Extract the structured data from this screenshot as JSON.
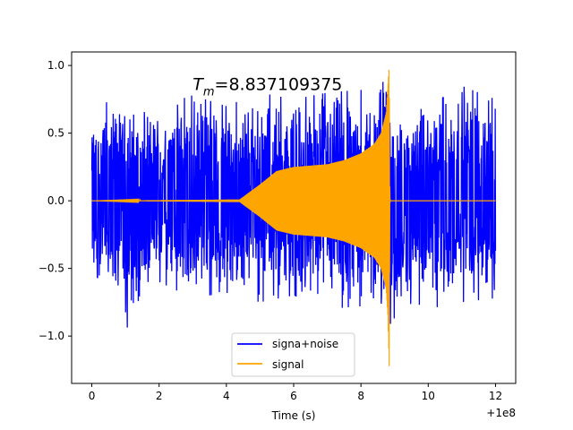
{
  "chart_data": {
    "type": "line",
    "title": "",
    "annotation": {
      "prefix": "T",
      "subscript": "m",
      "value_text": "=8.837109375",
      "x": 3.0,
      "y": 0.82
    },
    "xlabel": "Time (s)",
    "ylabel": "",
    "x_offset_label": "+1e8",
    "xlim": [
      -0.6,
      12.6
    ],
    "ylim": [
      -1.35,
      1.1
    ],
    "x_ticks": [
      0,
      2,
      4,
      6,
      8,
      10,
      12
    ],
    "x_tick_labels": [
      "0",
      "2",
      "4",
      "6",
      "8",
      "10",
      "12"
    ],
    "y_ticks": [
      -1.0,
      -0.5,
      0.0,
      0.5,
      1.0
    ],
    "y_tick_labels": [
      "−1.0",
      "−0.5",
      "0.0",
      "0.5",
      "1.0"
    ],
    "grid": false,
    "legend_position": "lower center",
    "series": [
      {
        "name": "signa+noise",
        "color": "#0000ff",
        "x_range": [
          0,
          12
        ],
        "envelope_x": [
          0,
          0.5,
          1.1,
          1.5,
          2.0,
          3.0,
          4.0,
          5.0,
          6.0,
          7.0,
          8.0,
          8.5,
          8.8,
          9.0,
          10.0,
          11.0,
          12.0
        ],
        "envelope_max": [
          0.58,
          0.75,
          0.72,
          0.65,
          0.7,
          0.78,
          0.7,
          0.8,
          0.75,
          0.8,
          0.82,
          0.75,
          1.0,
          0.6,
          0.7,
          0.85,
          0.75
        ],
        "envelope_min": [
          -0.55,
          -0.6,
          -1.03,
          -0.62,
          -0.6,
          -0.72,
          -0.68,
          -0.75,
          -0.7,
          -0.8,
          -0.78,
          -0.7,
          -1.22,
          -0.85,
          -0.8,
          -0.75,
          -0.72
        ]
      },
      {
        "name": "signal",
        "color": "#ffa500",
        "x_range": [
          0,
          12
        ],
        "envelope_x": [
          0,
          4.4,
          5.0,
          5.5,
          6.0,
          7.0,
          7.5,
          8.0,
          8.4,
          8.6,
          8.75,
          8.8,
          8.84,
          8.86,
          8.88,
          12.0
        ],
        "envelope_max": [
          0.0,
          0.01,
          0.12,
          0.22,
          0.25,
          0.27,
          0.3,
          0.35,
          0.42,
          0.5,
          0.65,
          0.85,
          1.0,
          0.02,
          0.0,
          0.0
        ],
        "envelope_min": [
          0.0,
          -0.01,
          -0.12,
          -0.22,
          -0.25,
          -0.27,
          -0.3,
          -0.35,
          -0.42,
          -0.5,
          -0.65,
          -0.85,
          -1.24,
          -0.02,
          0.0,
          0.0
        ]
      }
    ]
  }
}
